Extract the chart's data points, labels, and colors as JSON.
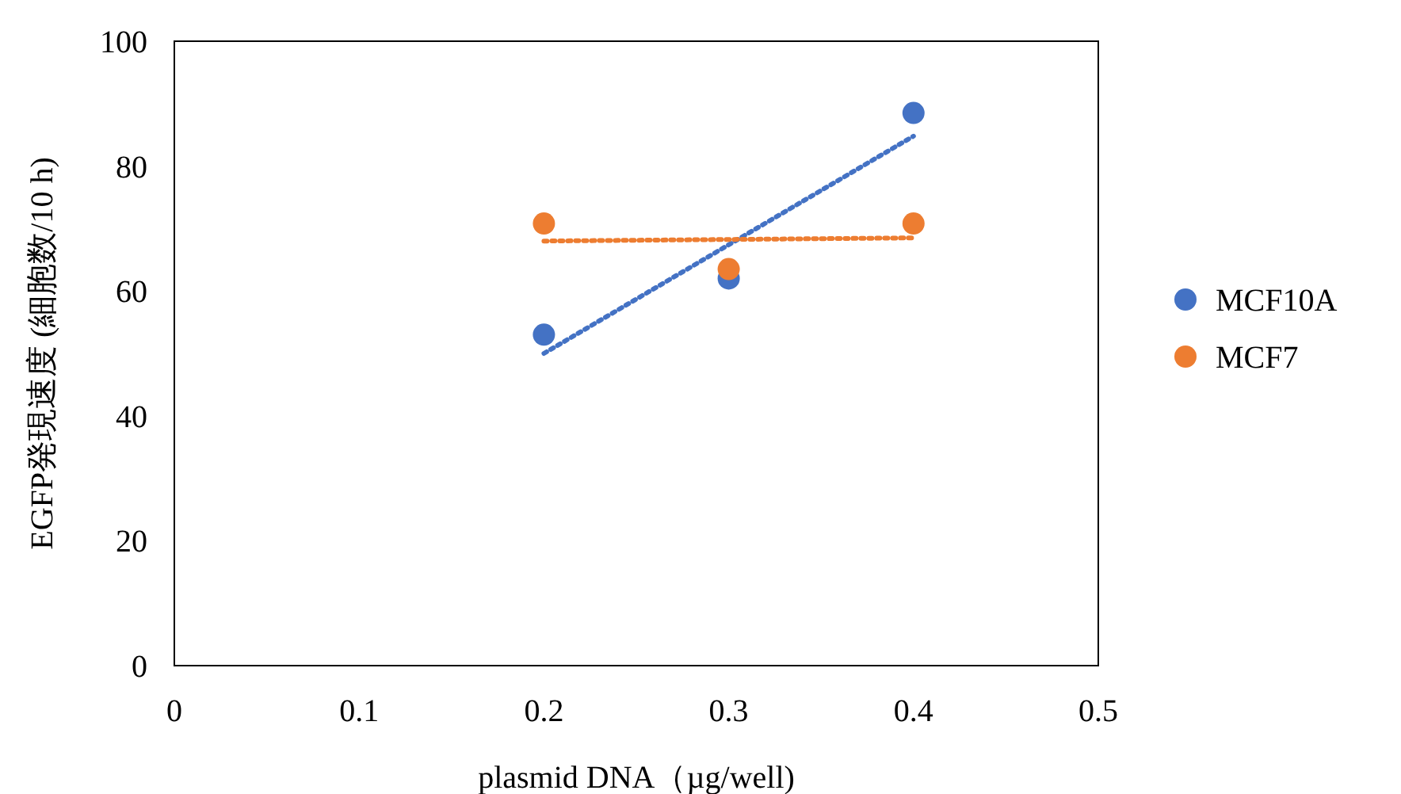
{
  "chart_data": {
    "type": "scatter",
    "xlabel": "plasmid DNA（µg/well)",
    "ylabel": "EGFP発現速度 (細胞数/10 h)",
    "xlim": [
      0,
      0.5
    ],
    "ylim": [
      0,
      100
    ],
    "xticks": [
      0,
      0.1,
      0.2,
      0.3,
      0.4,
      0.5
    ],
    "yticks": [
      0,
      20,
      40,
      60,
      80,
      100
    ],
    "legend": "right",
    "marker": "circle",
    "series": [
      {
        "name": "MCF10A",
        "color": "#4472c4",
        "x": [
          0.2,
          0.3,
          0.4
        ],
        "values": [
          53,
          62,
          88.5
        ]
      },
      {
        "name": "MCF7",
        "color": "#ed7d31",
        "x": [
          0.2,
          0.3,
          0.4
        ],
        "values": [
          70.8,
          63.5,
          70.8
        ]
      },
      {
        "type": "line",
        "color": "#4472c4",
        "line_style": "dotted",
        "marker": "none",
        "x": [
          0.2,
          0.4
        ],
        "values": [
          50,
          84.8
        ]
      },
      {
        "type": "line",
        "color": "#ed7d31",
        "line_style": "dotted",
        "marker": "none",
        "x": [
          0.2,
          0.4
        ],
        "values": [
          68,
          68.5
        ]
      }
    ]
  }
}
